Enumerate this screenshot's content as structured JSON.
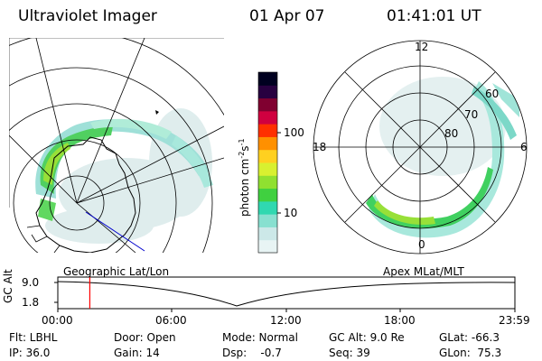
{
  "header": {
    "title": "Ultraviolet Imager",
    "date": "01 Apr 07",
    "time": "01:41:01 UT"
  },
  "colorbar": {
    "unit_label": "photon cm",
    "unit_sup1": "-2",
    "unit_s": "s",
    "unit_sup2": "-1",
    "tick_100": "100",
    "tick_10": "10",
    "colors": [
      "#e8f4f4",
      "#cce8e8",
      "#88e0d0",
      "#30d8b0",
      "#40d040",
      "#90e030",
      "#d8f030",
      "#ffd020",
      "#ff9000",
      "#ff3000",
      "#d00040",
      "#800030",
      "#280040",
      "#000020"
    ]
  },
  "polar_plot": {
    "label_12": "12",
    "label_18": "18",
    "label_6": "6",
    "label_0": "0",
    "lat_60": "60",
    "lat_70": "70",
    "lat_80": "80"
  },
  "timeline": {
    "left_label": "Geographic Lat/Lon",
    "right_label": "Apex MLat/MLT",
    "axis_title": "GC Alt",
    "y_max": "9.0",
    "y_min": "1.8",
    "ticks": [
      "00:00",
      "06:00",
      "12:00",
      "18:00",
      "23:59"
    ],
    "marker_fraction": 0.07,
    "marker_color": "#ff0000"
  },
  "info": {
    "flt": "Flt: LBHL",
    "ip": "IP: 36.0",
    "door": "Door: Open",
    "gain": "Gain: 14",
    "mode": "Mode: Normal",
    "dsp": "Dsp:    -0.7",
    "gcalt": "GC Alt: 9.0 Re",
    "seq": "Seq: 39",
    "glat": "GLat: -66.3",
    "glon": "GLon:  75.3"
  }
}
